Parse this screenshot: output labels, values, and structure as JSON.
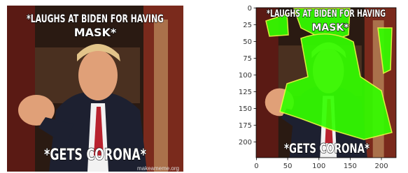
{
  "left_image": {
    "top_text": [
      "*LAUGHS AT BIDEN FOR HAVING",
      "MASK*"
    ],
    "bottom_text": "*GETS CORONA*",
    "watermark": "makeameme.org"
  },
  "right_plot": {
    "top_text": [
      "*LAUGHS AT BIDEN FOR HAVING",
      "MASK*"
    ],
    "bottom_text": "*GETS CORONA*",
    "xlim": [
      -0.5,
      223.5
    ],
    "ylim": [
      -0.5,
      223.5
    ],
    "xticks": [
      0,
      50,
      100,
      150,
      200
    ],
    "yticks": [
      0,
      25,
      50,
      75,
      100,
      125,
      150,
      175,
      200
    ]
  }
}
